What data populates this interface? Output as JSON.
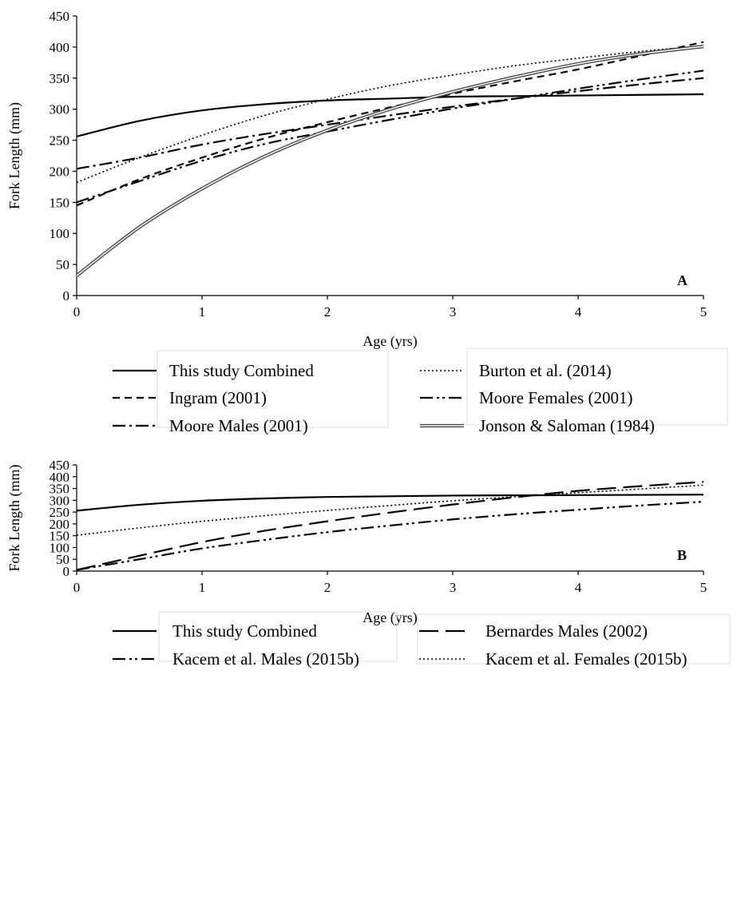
{
  "chart_data": [
    {
      "type": "line",
      "panel_label": "A",
      "xlabel": "Age (yrs)",
      "ylabel": "Fork Length (mm)",
      "xlim": [
        0,
        5
      ],
      "ylim": [
        0,
        450
      ],
      "x_ticks": [
        "0",
        "1",
        "2",
        "3",
        "4",
        "5"
      ],
      "y_ticks": [
        "0",
        "50",
        "100",
        "150",
        "200",
        "250",
        "300",
        "350",
        "400",
        "450"
      ],
      "grid": false,
      "legend_position": "below plot",
      "x": [
        0,
        0.5,
        1,
        1.5,
        2,
        2.5,
        3,
        3.5,
        4,
        4.5,
        5
      ],
      "series": [
        {
          "name": "This study Combined",
          "style": "solid",
          "values": [
            256,
            281,
            298,
            308,
            314,
            317,
            320,
            321,
            322,
            323,
            324
          ]
        },
        {
          "name": "Burton et al. (2014)",
          "style": "dotted",
          "values": [
            182,
            222,
            258,
            290,
            316,
            338,
            355,
            370,
            382,
            393,
            402
          ]
        },
        {
          "name": "Ingram (2001)",
          "style": "dashed",
          "values": [
            145,
            187,
            222,
            253,
            279,
            303,
            325,
            345,
            364,
            386,
            408
          ]
        },
        {
          "name": "Moore Females (2001)",
          "style": "dash-dot-dot",
          "values": [
            150,
            184,
            217,
            244,
            264,
            283,
            301,
            317,
            333,
            348,
            362
          ]
        },
        {
          "name": "Moore Males (2001)",
          "style": "dash-dot",
          "values": [
            204,
            222,
            243,
            260,
            275,
            290,
            304,
            317,
            329,
            340,
            350
          ]
        },
        {
          "name": "Jonson & Saloman (1984)",
          "style": "double",
          "values": [
            32,
            110,
            172,
            224,
            266,
            300,
            328,
            352,
            373,
            389,
            401
          ]
        }
      ]
    },
    {
      "type": "line",
      "panel_label": "B",
      "xlabel": "Age (yrs)",
      "ylabel": "Fork Length (mm)",
      "xlim": [
        0,
        5
      ],
      "ylim": [
        0,
        450
      ],
      "x_ticks": [
        "0",
        "1",
        "2",
        "3",
        "4",
        "5"
      ],
      "y_ticks": [
        "0",
        "50",
        "100",
        "150",
        "200",
        "250",
        "300",
        "350",
        "400",
        "450"
      ],
      "grid": false,
      "legend_position": "below plot",
      "x": [
        0,
        0.5,
        1,
        1.5,
        2,
        2.5,
        3,
        3.5,
        4,
        4.5,
        5
      ],
      "series": [
        {
          "name": "This study Combined",
          "style": "solid",
          "values": [
            256,
            281,
            298,
            308,
            314,
            317,
            320,
            321,
            322,
            323,
            324
          ]
        },
        {
          "name": "Bernardes Males (2002)",
          "style": "long-dash",
          "values": [
            5,
            65,
            123,
            171,
            211,
            248,
            282,
            313,
            340,
            360,
            378
          ]
        },
        {
          "name": "Kacem et al. Males (2015b)",
          "style": "dash-dot-dot",
          "values": [
            5,
            50,
            96,
            132,
            165,
            193,
            219,
            241,
            260,
            278,
            294
          ]
        },
        {
          "name": "Kacem et al. Females (2015b)",
          "style": "dotted",
          "values": [
            152,
            183,
            211,
            235,
            257,
            278,
            298,
            315,
            332,
            348,
            364
          ]
        }
      ]
    }
  ]
}
